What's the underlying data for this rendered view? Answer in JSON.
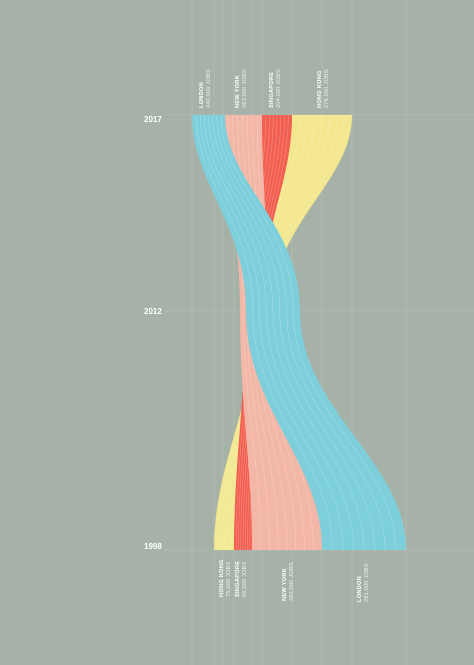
{
  "chart_data": {
    "type": "area",
    "years": [
      "2017",
      "2012",
      "1998"
    ],
    "series": [
      {
        "name": "London",
        "color": "#7ccfdb",
        "top_label": {
          "city": "LONDON",
          "jobs": "240,000 JOBS"
        },
        "bottom_label": {
          "city": "LONDON",
          "jobs": "281,000 JOBS"
        }
      },
      {
        "name": "New York",
        "color": "#f2b7a6",
        "top_label": {
          "city": "NEW YORK",
          "jobs": "263,000 JOBS"
        },
        "bottom_label": {
          "city": "NEW YORK",
          "jobs": "282,000 JOBS"
        }
      },
      {
        "name": "Singapore",
        "color": "#f25e4f",
        "top_label": {
          "city": "SINGAPORE",
          "jobs": "204,000 JOBS"
        },
        "bottom_label": {
          "city": "SINGAPORE",
          "jobs": "66,500 JOBS"
        }
      },
      {
        "name": "Hong Kong",
        "color": "#f3e78f",
        "top_label": {
          "city": "HONG KONG",
          "jobs": "278,000 JOBS"
        },
        "bottom_label": {
          "city": "HONG KONG",
          "jobs": "75,000 JOBS"
        }
      }
    ]
  }
}
